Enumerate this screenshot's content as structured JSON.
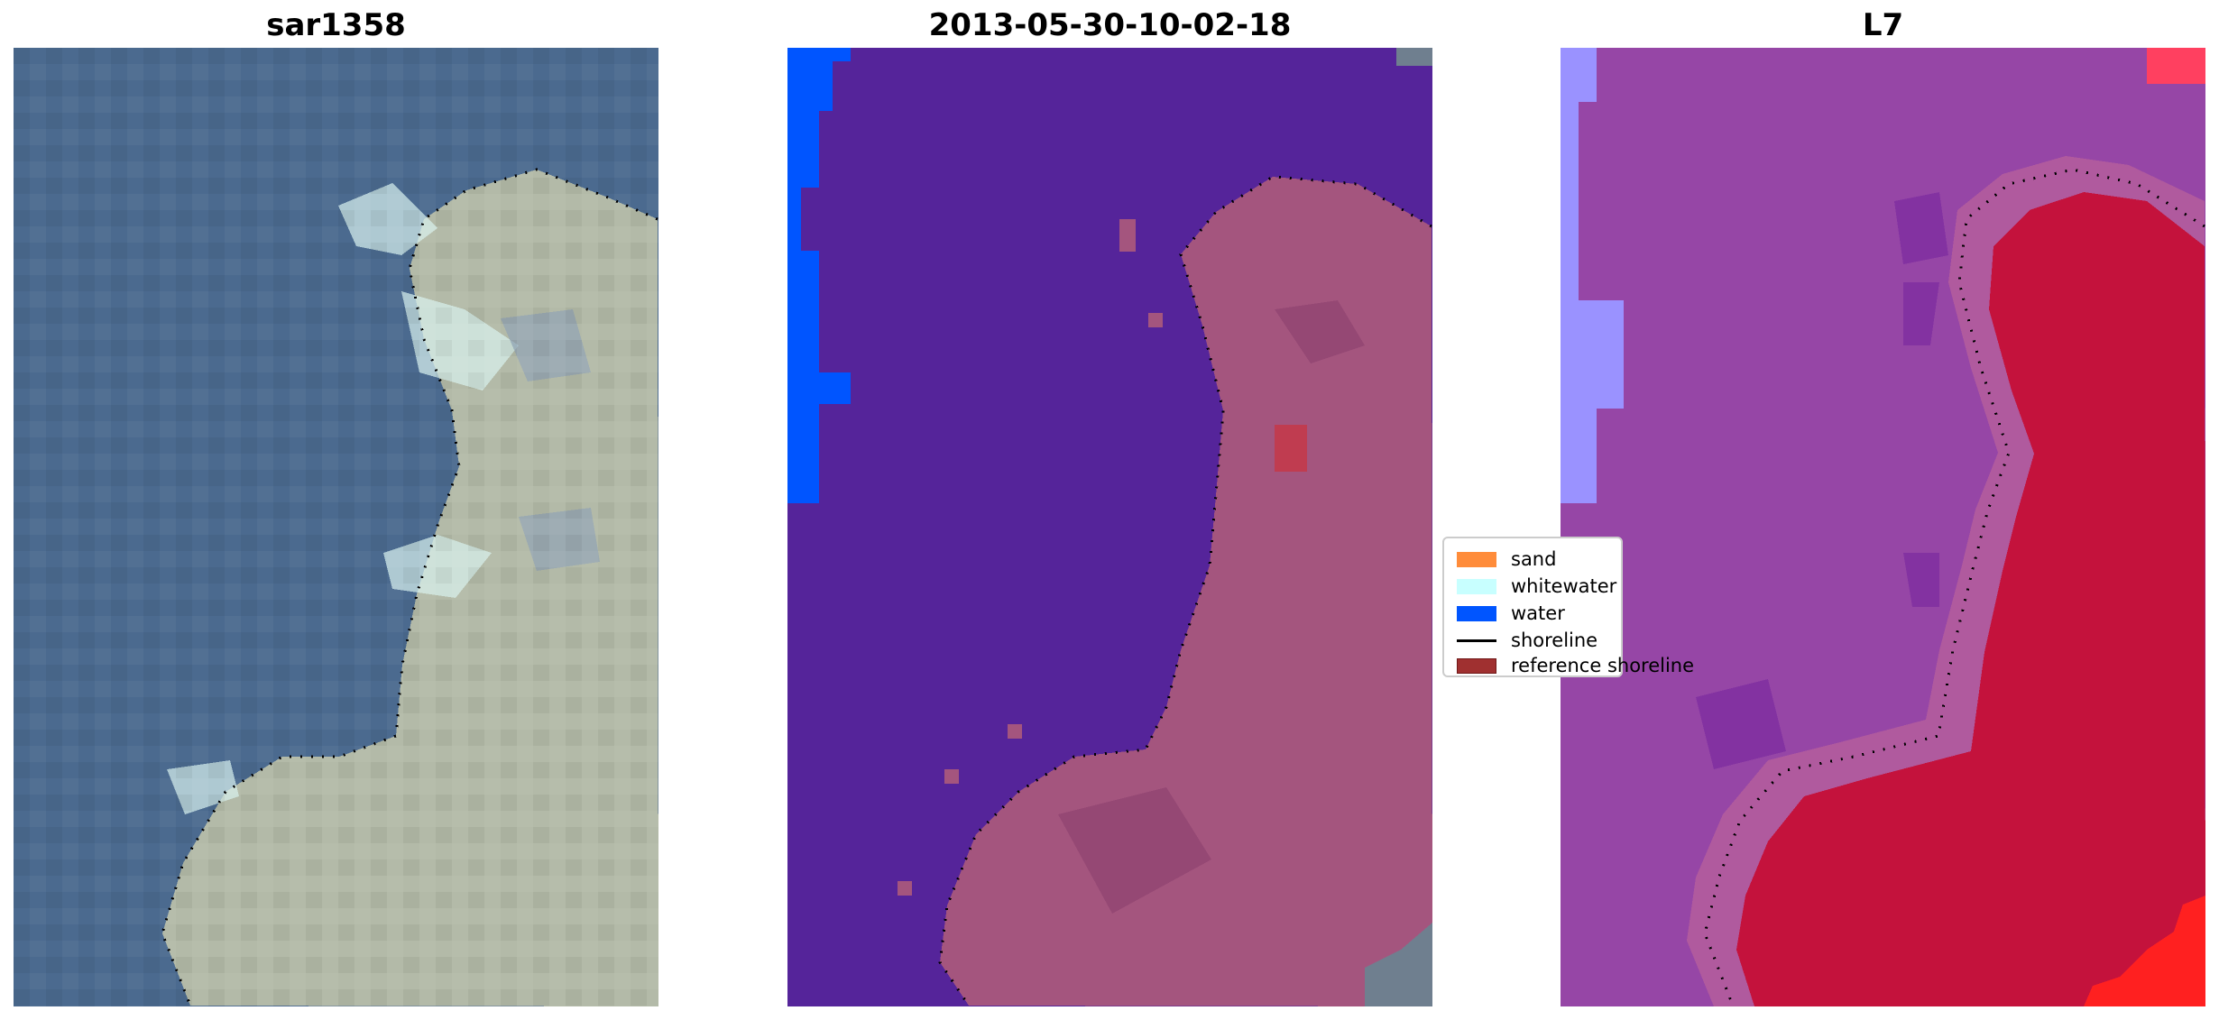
{
  "panels": [
    {
      "title": "sar1358",
      "style": "true-color",
      "colors": {
        "water": "#4b6a8f",
        "land": "#b9bfae",
        "highlight": "#d8f0f0"
      }
    },
    {
      "title": "2013-05-30-10-02-18",
      "style": "classification",
      "colors": {
        "background": "#55249a",
        "land": "#a4557e",
        "water_strip": "#0055ff",
        "reference": "#c03c50"
      }
    },
    {
      "title": "L7",
      "style": "false-color",
      "colors": {
        "background": "#9646a6",
        "land": "#c4123c",
        "left_strip": "#9a92ff",
        "bright": "#ff2020"
      }
    }
  ],
  "legend": {
    "items": [
      {
        "label": "sand",
        "type": "patch",
        "color": "#ff8c3a"
      },
      {
        "label": "whitewater",
        "type": "patch",
        "color": "#c8ffff"
      },
      {
        "label": "water",
        "type": "patch",
        "color": "#0055ff"
      },
      {
        "label": "shoreline",
        "type": "line",
        "color": "#000000"
      },
      {
        "label": "reference shoreline",
        "type": "patch",
        "color": "#a03030"
      }
    ]
  }
}
